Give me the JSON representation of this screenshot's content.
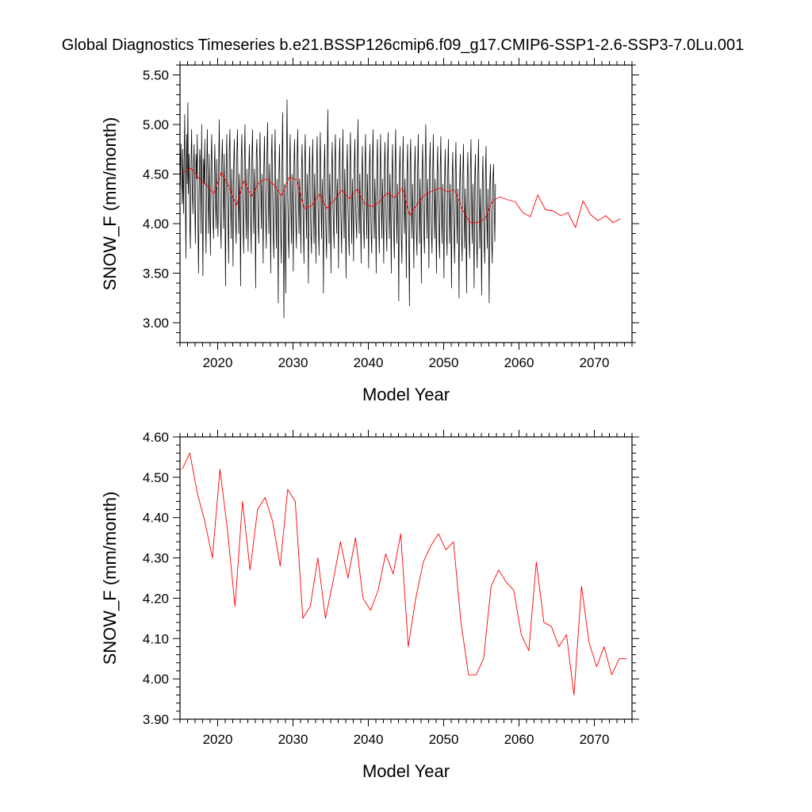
{
  "title": "Global Diagnostics Timeseries b.e21.BSSP126cmip6.f09_g17.CMIP6-SSP1-2.6-SSP3-7.0Lu.001",
  "colors": {
    "monthly": "#000000",
    "annual": "#ff0000",
    "axes": "#000000",
    "background": "#ffffff"
  },
  "chart_data": [
    {
      "type": "line",
      "xlabel": "Model Year",
      "ylabel": "SNOW_F (mm/month)",
      "xlim": [
        2015,
        2075
      ],
      "ylim": [
        2.8,
        5.6
      ],
      "xticks": [
        2020,
        2030,
        2040,
        2050,
        2060,
        2070
      ],
      "yticks": [
        3.0,
        3.5,
        4.0,
        4.5,
        5.0,
        5.5
      ],
      "ytick_labels": [
        "3.00",
        "3.50",
        "4.00",
        "4.50",
        "5.00",
        "5.50"
      ],
      "grid": false,
      "series": [
        {
          "kind": "monthly",
          "x_start": 2015.0417,
          "x_step": 0.0833333,
          "values": [
            4.35,
            4.8,
            4.55,
            4.2,
            4.75,
            4.1,
            4.6,
            5.1,
            4.25,
            3.65,
            4.9,
            4.4,
            5.22,
            4.3,
            4.7,
            4.05,
            3.75,
            4.6,
            4.95,
            4.35,
            4.1,
            4.55,
            4.8,
            4.2,
            3.8,
            4.7,
            4.45,
            4.9,
            4.05,
            3.5,
            4.3,
            4.75,
            4.6,
            3.9,
            5.0,
            4.2,
            3.47,
            4.65,
            4.4,
            4.85,
            4.1,
            3.7,
            4.55,
            4.95,
            4.3,
            3.9,
            4.7,
            4.15,
            3.68,
            4.6,
            4.9,
            4.35,
            4.05,
            3.85,
            4.5,
            4.8,
            4.25,
            3.95,
            4.65,
            4.1,
            3.87,
            4.55,
            5.05,
            4.3,
            4.0,
            3.75,
            4.6,
            4.85,
            4.4,
            3.95,
            4.7,
            4.2,
            3.37,
            4.5,
            4.9,
            4.35,
            4.05,
            3.6,
            4.75,
            4.95,
            4.25,
            3.85,
            4.55,
            4.15,
            3.57,
            4.6,
            4.85,
            4.3,
            4.0,
            3.8,
            4.7,
            4.95,
            4.4,
            3.9,
            4.5,
            4.2,
            3.37,
            4.65,
            4.9,
            4.35,
            3.95,
            3.7,
            4.6,
            5.0,
            4.25,
            3.85,
            4.55,
            4.15,
            3.72,
            4.5,
            4.8,
            4.4,
            4.05,
            3.7,
            4.65,
            4.95,
            4.3,
            3.9,
            4.55,
            4.25,
            3.35,
            4.7,
            4.85,
            4.35,
            4.0,
            3.8,
            4.6,
            4.92,
            4.4,
            3.95,
            4.5,
            4.2,
            3.6,
            4.55,
            4.88,
            4.3,
            4.05,
            3.75,
            4.7,
            5.02,
            4.35,
            3.9,
            4.6,
            4.25,
            3.5,
            4.65,
            4.9,
            4.3,
            3.9,
            3.65,
            4.55,
            4.95,
            4.2,
            3.75,
            4.45,
            4.1,
            3.2,
            4.5,
            4.8,
            4.25,
            3.85,
            3.6,
            4.6,
            5.12,
            4.15,
            3.05,
            4.4,
            4.0,
            3.3,
            4.6,
            5.25,
            4.3,
            3.9,
            3.65,
            4.55,
            4.9,
            4.2,
            3.8,
            4.5,
            4.15,
            3.52,
            4.6,
            4.85,
            4.3,
            4.0,
            3.75,
            4.65,
            4.95,
            4.35,
            3.9,
            4.45,
            4.2,
            3.7,
            4.55,
            4.8,
            4.25,
            3.95,
            3.6,
            4.6,
            4.9,
            4.3,
            3.85,
            4.5,
            4.15,
            3.4,
            4.45,
            4.78,
            4.25,
            3.9,
            3.7,
            4.55,
            4.85,
            4.2,
            3.8,
            4.5,
            4.1,
            3.6,
            4.6,
            4.88,
            4.3,
            3.95,
            3.68,
            4.55,
            4.92,
            4.25,
            3.85,
            4.45,
            4.15,
            3.3,
            4.5,
            4.8,
            4.2,
            3.9,
            3.65,
            4.6,
            5.15,
            4.3,
            3.8,
            4.5,
            4.1,
            3.5,
            4.55,
            4.82,
            4.25,
            3.95,
            3.75,
            4.6,
            4.9,
            4.35,
            3.9,
            4.45,
            4.2,
            3.55,
            4.6,
            4.86,
            4.3,
            4.0,
            3.7,
            4.5,
            4.95,
            4.25,
            3.85,
            4.55,
            4.1,
            3.45,
            4.5,
            4.8,
            4.2,
            3.9,
            3.68,
            4.6,
            4.92,
            4.3,
            3.8,
            4.45,
            4.15,
            3.62,
            4.55,
            4.85,
            4.25,
            4.0,
            3.85,
            4.6,
            5.05,
            4.2,
            3.9,
            4.5,
            4.1,
            3.6,
            4.45,
            4.78,
            4.2,
            3.95,
            3.75,
            4.55,
            4.9,
            4.3,
            3.85,
            4.5,
            4.15,
            3.55,
            4.5,
            4.8,
            4.25,
            3.9,
            3.7,
            4.6,
            4.95,
            4.2,
            3.85,
            4.45,
            4.1,
            3.5,
            4.55,
            4.85,
            4.3,
            3.95,
            3.7,
            4.5,
            4.9,
            4.25,
            3.85,
            4.45,
            4.1,
            3.6,
            4.55,
            4.82,
            4.3,
            3.95,
            3.72,
            4.6,
            4.92,
            4.2,
            3.85,
            4.5,
            4.15,
            3.5,
            4.45,
            4.8,
            4.25,
            3.9,
            3.65,
            4.55,
            4.95,
            4.2,
            3.8,
            4.4,
            4.05,
            3.22,
            4.5,
            4.78,
            4.2,
            3.85,
            3.6,
            4.55,
            4.88,
            4.25,
            3.9,
            4.45,
            4.1,
            3.45,
            4.5,
            4.8,
            4.15,
            3.8,
            3.17,
            4.6,
            4.85,
            4.2,
            3.85,
            4.4,
            4.05,
            3.55,
            4.5,
            4.78,
            4.25,
            3.9,
            3.68,
            4.55,
            4.9,
            4.2,
            3.8,
            4.45,
            4.1,
            3.4,
            4.5,
            4.8,
            4.25,
            3.9,
            3.7,
            4.6,
            5.0,
            4.3,
            3.85,
            4.45,
            4.1,
            3.55,
            4.55,
            4.82,
            4.2,
            3.9,
            3.7,
            4.5,
            4.9,
            4.25,
            3.85,
            4.45,
            4.05,
            3.5,
            4.5,
            4.78,
            4.2,
            3.85,
            3.65,
            4.55,
            4.88,
            4.15,
            3.8,
            4.4,
            4.05,
            3.45,
            4.45,
            4.75,
            4.2,
            3.9,
            3.68,
            4.5,
            4.85,
            4.2,
            3.8,
            4.4,
            4.0,
            3.35,
            4.45,
            4.72,
            4.15,
            3.85,
            3.6,
            4.5,
            4.82,
            4.2,
            3.8,
            4.35,
            4.0,
            3.25,
            4.4,
            4.7,
            4.15,
            3.85,
            3.62,
            4.5,
            4.8,
            4.2,
            3.75,
            4.35,
            3.95,
            3.3,
            4.45,
            4.72,
            4.2,
            3.85,
            3.65,
            4.55,
            4.85,
            4.15,
            3.8,
            4.4,
            4.0,
            3.35,
            4.45,
            4.7,
            4.1,
            3.8,
            3.55,
            4.5,
            4.85,
            4.2,
            3.75,
            4.35,
            3.95,
            3.28,
            4.4,
            4.68,
            4.15,
            3.8,
            3.6,
            4.5,
            4.78,
            4.1,
            3.75,
            4.35,
            3.9,
            3.2,
            4.4,
            4.6,
            4.1,
            3.8,
            3.6,
            4.45,
            4.6,
            4.15,
            3.82,
            4.4
          ]
        },
        {
          "kind": "annual",
          "x": [
            2015.5,
            2016.5,
            2017.5,
            2018.5,
            2019.5,
            2020.5,
            2021.5,
            2022.5,
            2023.5,
            2024.5,
            2025.5,
            2026.5,
            2027.5,
            2028.5,
            2029.5,
            2030.5,
            2031.5,
            2032.5,
            2033.5,
            2034.5,
            2035.5,
            2036.5,
            2037.5,
            2038.5,
            2039.5,
            2040.5,
            2041.5,
            2042.5,
            2043.5,
            2044.5,
            2045.5,
            2046.5,
            2047.5,
            2048.5,
            2049.5,
            2050.5,
            2051.5,
            2052.5,
            2053.5,
            2054.5,
            2055.5,
            2056.5,
            2057.5,
            2058.5,
            2059.5,
            2060.5,
            2061.5,
            2062.5,
            2063.5,
            2064.5,
            2065.5,
            2066.5,
            2067.5,
            2068.5,
            2069.5,
            2070.5,
            2071.5,
            2072.5,
            2073.5
          ],
          "values": [
            4.52,
            4.56,
            4.46,
            4.39,
            4.3,
            4.52,
            4.37,
            4.18,
            4.44,
            4.27,
            4.42,
            4.45,
            4.39,
            4.28,
            4.47,
            4.44,
            4.15,
            4.18,
            4.3,
            4.15,
            4.24,
            4.34,
            4.25,
            4.35,
            4.2,
            4.17,
            4.22,
            4.31,
            4.26,
            4.36,
            4.08,
            4.2,
            4.29,
            4.33,
            4.36,
            4.32,
            4.34,
            4.14,
            4.01,
            4.01,
            4.05,
            4.23,
            4.27,
            4.24,
            4.22,
            4.11,
            4.07,
            4.29,
            4.14,
            4.13,
            4.08,
            4.11,
            3.96,
            4.23,
            4.09,
            4.03,
            4.08,
            4.01,
            4.05
          ]
        }
      ]
    },
    {
      "type": "line",
      "xlabel": "Model Year",
      "ylabel": "SNOW_F (mm/month)",
      "xlim": [
        2015,
        2075
      ],
      "ylim": [
        3.9,
        4.6
      ],
      "xticks": [
        2020,
        2030,
        2040,
        2050,
        2060,
        2070
      ],
      "yticks": [
        3.9,
        4.0,
        4.1,
        4.2,
        4.3,
        4.4,
        4.5,
        4.6
      ],
      "ytick_labels": [
        "3.90",
        "4.00",
        "4.10",
        "4.20",
        "4.30",
        "4.40",
        "4.50",
        "4.60"
      ],
      "grid": false,
      "series": [
        {
          "kind": "annual",
          "x": [
            2015.3,
            2016.3,
            2017.3,
            2018.3,
            2019.3,
            2020.3,
            2021.3,
            2022.3,
            2023.3,
            2024.3,
            2025.3,
            2026.3,
            2027.3,
            2028.3,
            2029.3,
            2030.3,
            2031.3,
            2032.3,
            2033.3,
            2034.3,
            2035.3,
            2036.3,
            2037.3,
            2038.3,
            2039.3,
            2040.3,
            2041.3,
            2042.3,
            2043.3,
            2044.3,
            2045.3,
            2046.3,
            2047.3,
            2048.3,
            2049.3,
            2050.3,
            2051.3,
            2052.3,
            2053.3,
            2054.3,
            2055.3,
            2056.3,
            2057.3,
            2058.3,
            2059.3,
            2060.3,
            2061.3,
            2062.3,
            2063.3,
            2064.3,
            2065.3,
            2066.3,
            2067.3,
            2068.3,
            2069.3,
            2070.3,
            2071.3,
            2072.3,
            2073.3,
            2074.3
          ],
          "values": [
            4.52,
            4.56,
            4.46,
            4.39,
            4.3,
            4.52,
            4.37,
            4.18,
            4.44,
            4.27,
            4.42,
            4.45,
            4.39,
            4.28,
            4.47,
            4.44,
            4.15,
            4.18,
            4.3,
            4.15,
            4.24,
            4.34,
            4.25,
            4.35,
            4.2,
            4.17,
            4.22,
            4.31,
            4.26,
            4.36,
            4.08,
            4.2,
            4.29,
            4.33,
            4.36,
            4.32,
            4.34,
            4.14,
            4.01,
            4.01,
            4.05,
            4.23,
            4.27,
            4.24,
            4.22,
            4.11,
            4.07,
            4.29,
            4.14,
            4.13,
            4.08,
            4.11,
            3.96,
            4.23,
            4.09,
            4.03,
            4.08,
            4.01,
            4.05,
            4.05
          ]
        }
      ]
    }
  ]
}
